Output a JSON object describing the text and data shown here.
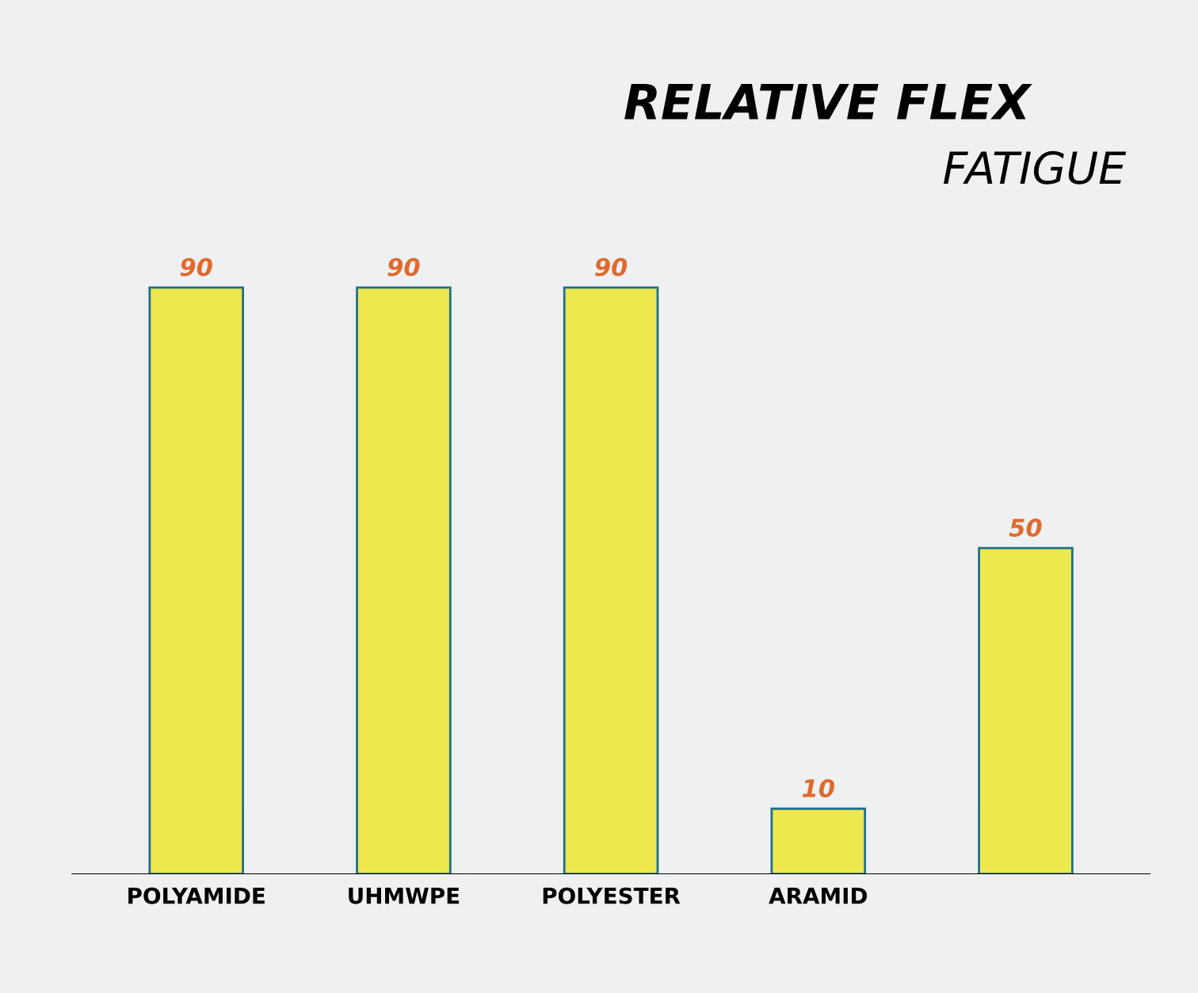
{
  "chart_data": {
    "type": "bar",
    "title": "RELATIVE FLEX",
    "subtitle": "FATIGUE",
    "categories": [
      "POLYAMIDE",
      "UHMWPE",
      "POLYESTER",
      "ARAMID",
      null
    ],
    "values": [
      90,
      90,
      90,
      10,
      50
    ],
    "color": "#ede84d",
    "data_labels": true,
    "tick_labels": "x"
  }
}
